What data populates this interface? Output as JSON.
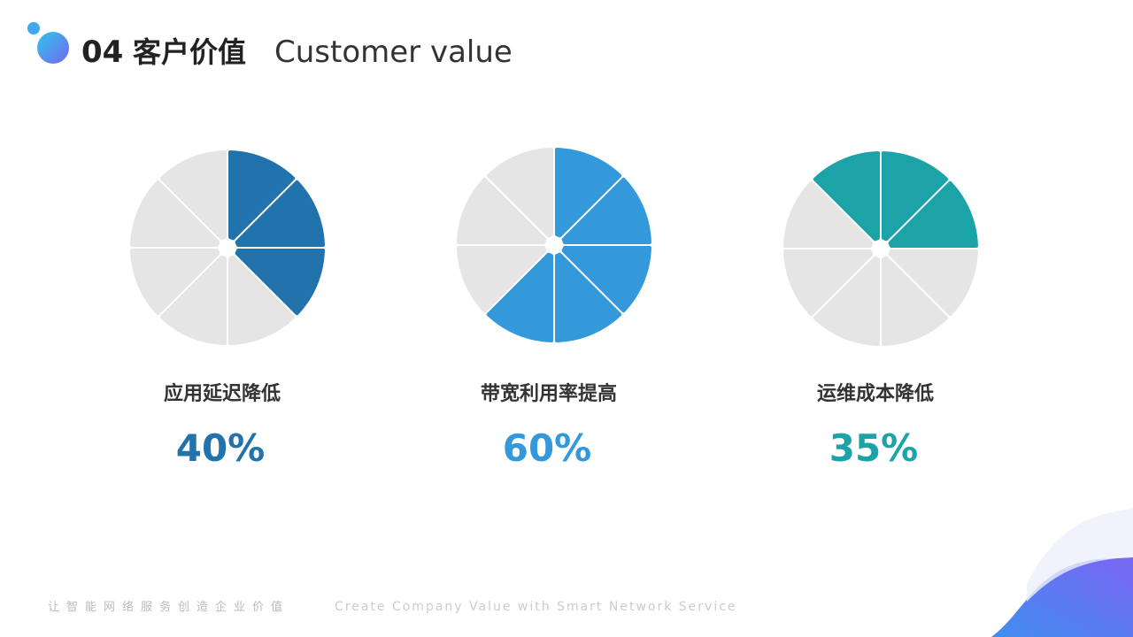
{
  "header": {
    "number": "04",
    "title": "客户价值",
    "subtitle": "Customer value"
  },
  "chart_data": [
    {
      "type": "pie",
      "title": "应用延迟降低",
      "values": [
        40
      ],
      "value_labels": [
        "40%"
      ],
      "color": "#2272ac",
      "track_color": "#e6e5e6"
    },
    {
      "type": "pie",
      "title": "带宽利用率提高",
      "values": [
        60
      ],
      "value_labels": [
        "60%"
      ],
      "color": "#3399db",
      "track_color": "#e6e5e6"
    },
    {
      "type": "pie",
      "title": "运维成本降低",
      "values": [
        35
      ],
      "value_labels": [
        "35%"
      ],
      "color": "#1ba3a8",
      "track_color": "#e6e5e6"
    }
  ],
  "footer": {
    "cn": "让智能网络服务创造企业价值",
    "en": "Create Company Value with Smart Network Service"
  }
}
